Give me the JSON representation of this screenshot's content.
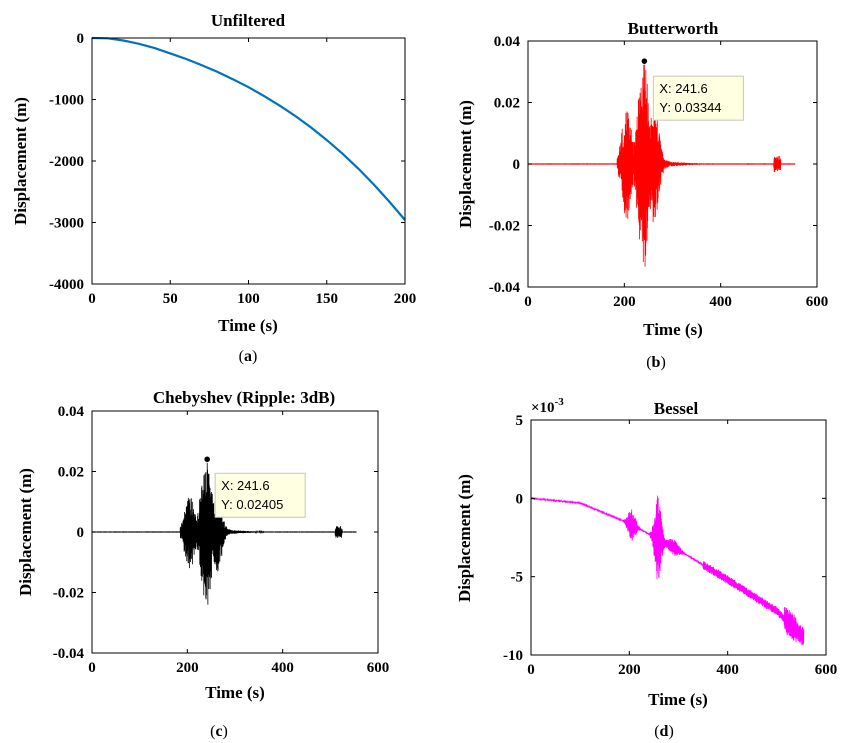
{
  "chart_data": [
    {
      "type": "line",
      "panel": "a",
      "title": "Unfiltered",
      "caption_letter": "a",
      "xlabel": "Time (s)",
      "ylabel": "Displacement (m)",
      "xlim": [
        0,
        200
      ],
      "ylim": [
        -4000,
        0
      ],
      "xticks": [
        0,
        50,
        100,
        150,
        200
      ],
      "yticks": [
        -4000,
        -3000,
        -2000,
        -1000,
        0
      ],
      "xtick_labels": [
        "0",
        "50",
        "100",
        "150",
        "200"
      ],
      "ytick_labels": [
        "-4000",
        "-3000",
        "-2000",
        "-1000",
        "0"
      ],
      "color": "#0072BD",
      "series": [
        {
          "x": [
            0,
            10,
            20,
            30,
            40,
            50,
            60,
            70,
            80,
            90,
            100,
            110,
            120,
            130,
            140,
            150,
            160,
            170,
            180,
            190,
            200
          ],
          "y": [
            0,
            -5,
            -40,
            -95,
            -165,
            -250,
            -340,
            -440,
            -550,
            -670,
            -800,
            -945,
            -1100,
            -1270,
            -1455,
            -1660,
            -1880,
            -2120,
            -2380,
            -2660,
            -2960
          ]
        }
      ]
    },
    {
      "type": "line",
      "panel": "b",
      "title": "Butterworth",
      "caption_letter": "b",
      "xlabel": "Time (s)",
      "ylabel": "Displacement (m)",
      "xlim": [
        0,
        600
      ],
      "ylim": [
        -0.04,
        0.04
      ],
      "xticks": [
        0,
        200,
        400,
        600
      ],
      "yticks": [
        -0.04,
        -0.02,
        0,
        0.02,
        0.04
      ],
      "xtick_labels": [
        "0",
        "200",
        "400",
        "600"
      ],
      "ytick_labels": [
        "-0.04",
        "-0.02",
        "0",
        "0.02",
        "0.04"
      ],
      "color": "#FF0000",
      "signal": "seismic-burst",
      "t_end": 555,
      "peak": 0.0334,
      "datatip": {
        "x": 241.6,
        "y": 0.03344,
        "line1": "X: 241.6",
        "line2": "Y: 0.03344"
      }
    },
    {
      "type": "line",
      "panel": "c",
      "title": "Chebyshev (Ripple: 3dB)",
      "caption_letter": "c",
      "xlabel": "Time (s)",
      "ylabel": "Displacement (m)",
      "xlim": [
        0,
        600
      ],
      "ylim": [
        -0.04,
        0.04
      ],
      "xticks": [
        0,
        200,
        400,
        600
      ],
      "yticks": [
        -0.04,
        -0.02,
        0,
        0.02,
        0.04
      ],
      "xtick_labels": [
        "0",
        "200",
        "400",
        "600"
      ],
      "ytick_labels": [
        "-0.04",
        "-0.02",
        "0",
        "0.02",
        "0.04"
      ],
      "color": "#000000",
      "signal": "seismic-burst",
      "t_end": 555,
      "peak": 0.024,
      "datatip": {
        "x": 241.6,
        "y": 0.02405,
        "line1": "X: 241.6",
        "line2": "Y: 0.02405"
      }
    },
    {
      "type": "line",
      "panel": "d",
      "title": "Bessel",
      "caption_letter": "d",
      "xlabel": "Time (s)",
      "ylabel": "Displacement (m)",
      "xlim": [
        0,
        600
      ],
      "ylim": [
        -10,
        5
      ],
      "y_exponent_label": "×10",
      "y_exponent": "-3",
      "xticks": [
        0,
        200,
        400,
        600
      ],
      "yticks": [
        -10,
        -5,
        0,
        5
      ],
      "xtick_labels": [
        "0",
        "200",
        "400",
        "600"
      ],
      "ytick_labels": [
        "-10",
        "-5",
        "0",
        "5"
      ],
      "color": "#FF00FF",
      "signal": "drifting-burst",
      "t_end": 555,
      "trend_points": [
        [
          0,
          0
        ],
        [
          100,
          -0.3
        ],
        [
          200,
          -1.6
        ],
        [
          300,
          -3.3
        ],
        [
          400,
          -5.2
        ],
        [
          500,
          -7.2
        ],
        [
          555,
          -8.9
        ]
      ]
    }
  ]
}
